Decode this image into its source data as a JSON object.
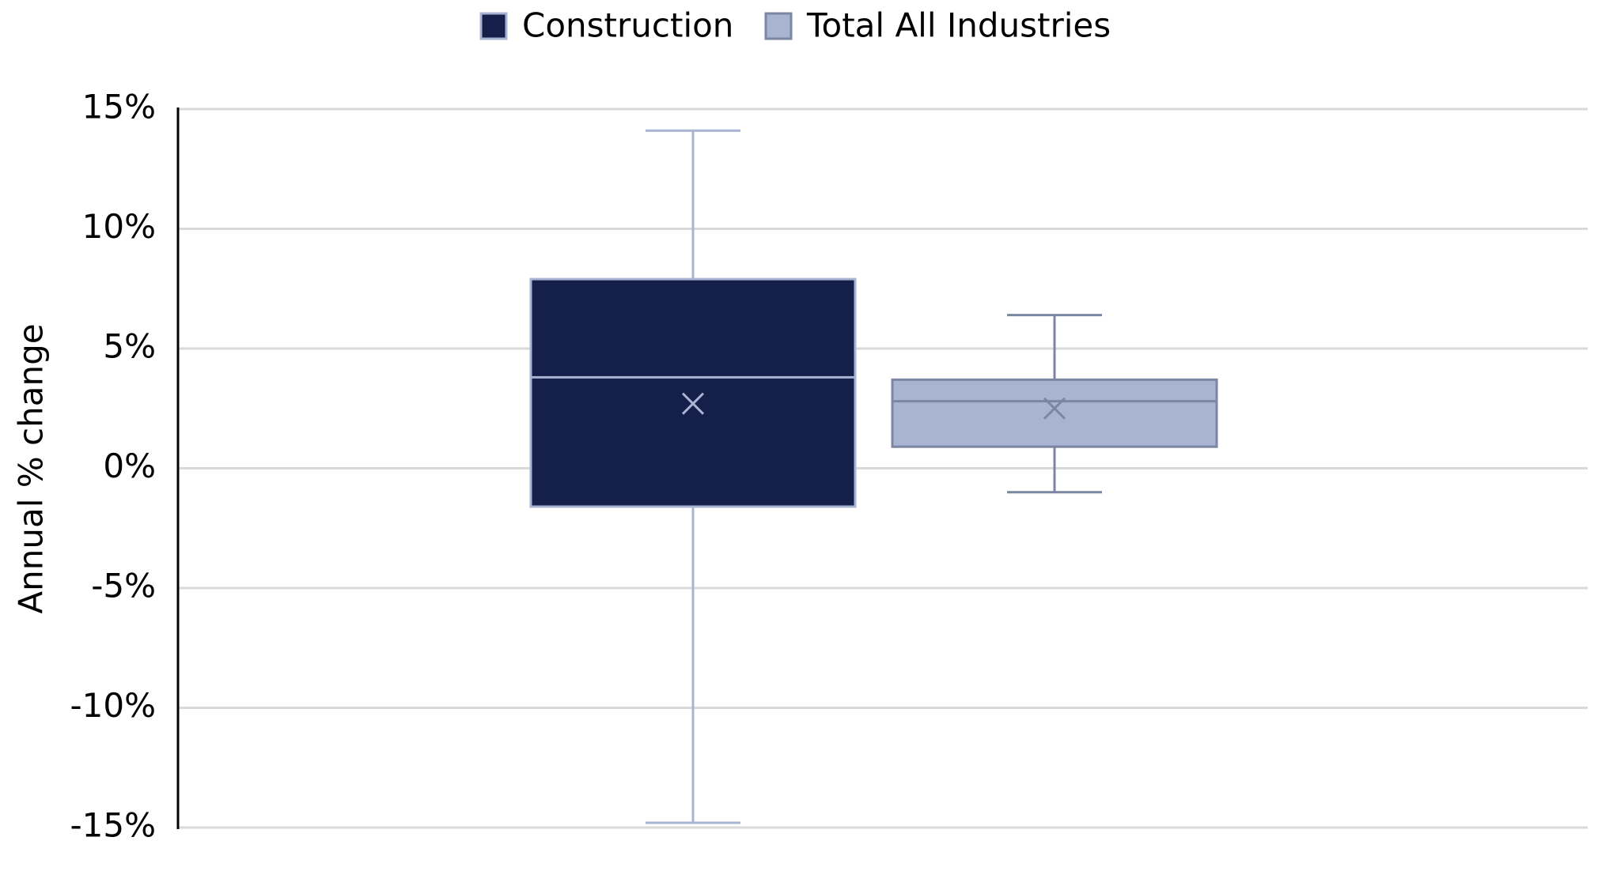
{
  "chart_data": {
    "type": "box",
    "y_label": "Annual % change",
    "ylim": [
      -15,
      15
    ],
    "yticks": [
      {
        "value": 15,
        "label": "15%"
      },
      {
        "value": 10,
        "label": "10%"
      },
      {
        "value": 5,
        "label": "5%"
      },
      {
        "value": 0,
        "label": "0%"
      },
      {
        "value": -5,
        "label": "-5%"
      },
      {
        "value": -10,
        "label": "-10%"
      },
      {
        "value": -15,
        "label": "-15%"
      }
    ],
    "grid": true,
    "legend": "top",
    "series": [
      {
        "name": "Construction",
        "color": "#15204a",
        "edge": "#a9b4d3",
        "min": -14.8,
        "q1": -1.6,
        "median": 3.8,
        "q3": 7.9,
        "max": 14.1,
        "mean": 2.7
      },
      {
        "name": "Total All Industries",
        "color": "#a9b4d3",
        "edge": "#7c86a3",
        "min": -1.0,
        "q1": 0.9,
        "median": 2.8,
        "q3": 3.7,
        "max": 6.4,
        "mean": 2.5
      }
    ]
  }
}
